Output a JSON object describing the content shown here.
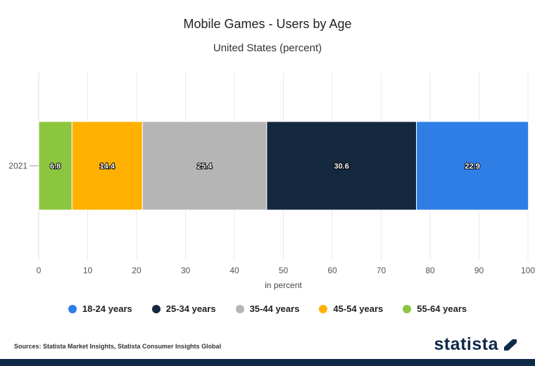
{
  "chart_data": {
    "type": "bar",
    "orientation": "horizontal-stacked",
    "title": "Mobile Games - Users by Age",
    "subtitle": "United States (percent)",
    "xlabel": "in percent",
    "ylabel": "",
    "xlim": [
      0,
      100
    ],
    "xticks": [
      0,
      10,
      20,
      30,
      40,
      50,
      60,
      70,
      80,
      90,
      100
    ],
    "categories": [
      "2021"
    ],
    "series": [
      {
        "name": "55-64 years",
        "color": "#8cc63f",
        "values": [
          6.8
        ]
      },
      {
        "name": "45-54 years",
        "color": "#ffb000",
        "values": [
          14.4
        ]
      },
      {
        "name": "35-44 years",
        "color": "#b5b5b5",
        "values": [
          25.4
        ]
      },
      {
        "name": "25-34 years",
        "color": "#14283f",
        "values": [
          30.6
        ]
      },
      {
        "name": "18-24 years",
        "color": "#2f7ee6",
        "values": [
          22.9
        ]
      }
    ],
    "legend_order": [
      "18-24 years",
      "25-34 years",
      "35-44 years",
      "45-54 years",
      "55-64 years"
    ],
    "legend_position": "bottom",
    "grid": true
  },
  "source": "Sources: Statista Market Insights, Statista Consumer Insights Global",
  "brand": {
    "name": "statista",
    "color": "#0e2a47"
  }
}
